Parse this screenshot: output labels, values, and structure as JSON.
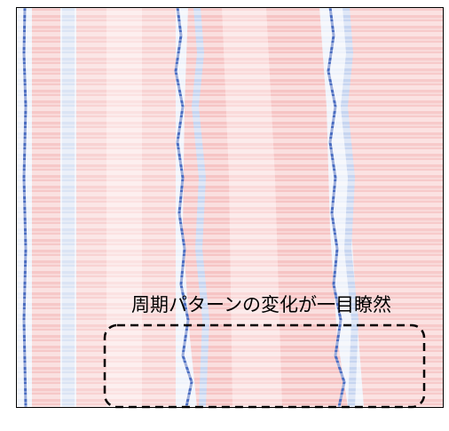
{
  "annotation": {
    "text": "周期パターンの変化が一目瞭然"
  }
}
